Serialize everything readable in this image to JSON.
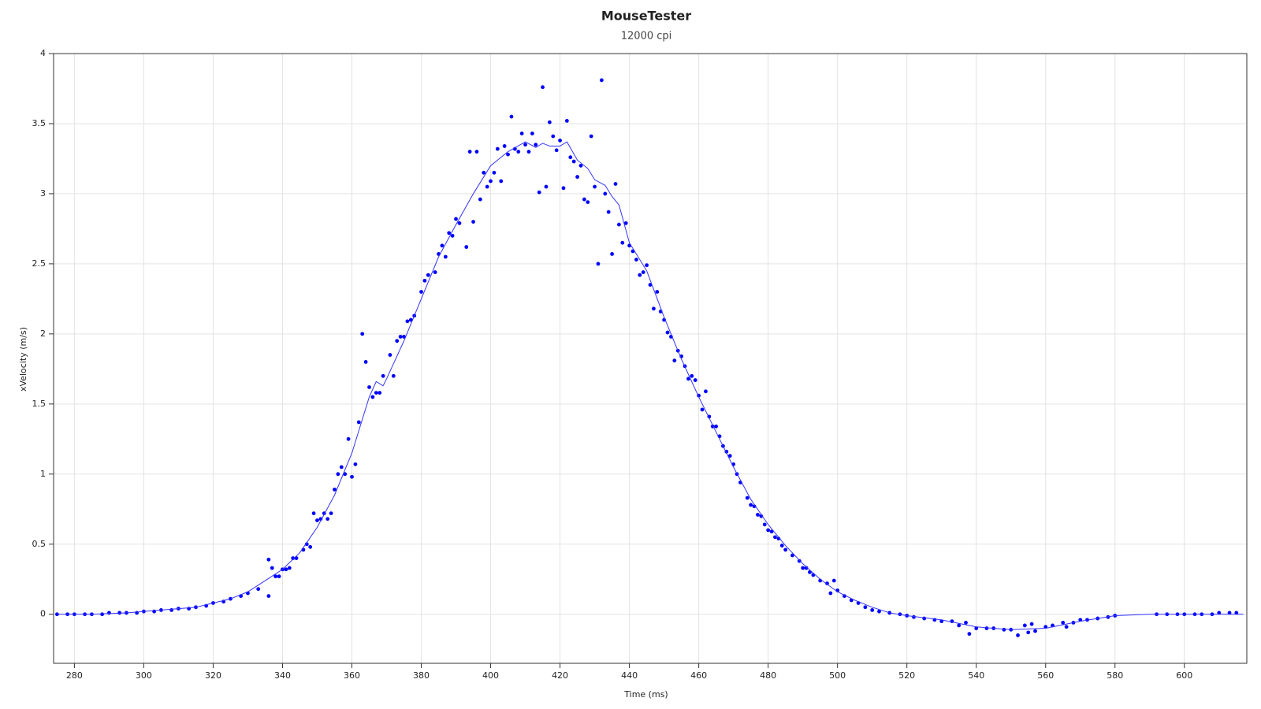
{
  "chart_data": {
    "type": "scatter",
    "title": "MouseTester",
    "subtitle": "12000 cpi",
    "x_label": "Time (ms)",
    "y_label": "xVelocity (m/s)",
    "xlim": [
      274,
      618
    ],
    "ylim": [
      -0.35,
      4
    ],
    "xticks": [
      280,
      300,
      320,
      340,
      360,
      380,
      400,
      420,
      440,
      460,
      480,
      500,
      520,
      540,
      560,
      580,
      600
    ],
    "yticks": [
      0,
      0.5,
      1,
      1.5,
      2,
      2.5,
      3,
      3.5,
      4
    ],
    "grid": true,
    "series": [
      {
        "type": "scatter",
        "color": "#0000ff",
        "x": [
          275,
          278,
          280,
          283,
          285,
          288,
          290,
          293,
          295,
          298,
          300,
          303,
          305,
          308,
          310,
          313,
          315,
          318,
          320,
          323,
          325,
          328,
          330,
          333,
          336,
          336,
          337,
          338,
          339,
          340,
          341,
          342,
          343,
          344,
          346,
          347,
          348,
          349,
          350,
          351,
          352,
          353,
          354,
          355,
          356,
          357,
          358,
          359,
          360,
          361,
          362,
          363,
          364,
          365,
          366,
          367,
          368,
          369,
          371,
          372,
          373,
          374,
          375,
          376,
          377,
          378,
          380,
          381,
          382,
          384,
          385,
          386,
          387,
          388,
          389,
          390,
          391,
          393,
          394,
          395,
          396,
          397,
          398,
          399,
          400,
          401,
          402,
          403,
          404,
          405,
          406,
          407,
          408,
          409,
          410,
          411,
          412,
          413,
          414,
          415,
          416,
          417,
          418,
          419,
          420,
          421,
          422,
          423,
          424,
          425,
          426,
          427,
          428,
          429,
          430,
          431,
          432,
          433,
          434,
          435,
          436,
          437,
          438,
          439,
          440,
          441,
          442,
          443,
          444,
          445,
          446,
          447,
          448,
          449,
          450,
          451,
          452,
          453,
          454,
          455,
          456,
          457,
          458,
          459,
          460,
          461,
          462,
          463,
          464,
          465,
          466,
          467,
          468,
          469,
          470,
          471,
          472,
          474,
          475,
          476,
          477,
          478,
          479,
          480,
          481,
          482,
          483,
          484,
          485,
          487,
          489,
          490,
          491,
          492,
          493,
          495,
          497,
          498,
          499,
          500,
          502,
          504,
          506,
          508,
          510,
          512,
          515,
          518,
          520,
          522,
          525,
          528,
          530,
          533,
          535,
          537,
          538,
          540,
          543,
          545,
          548,
          550,
          552,
          554,
          555,
          556,
          557,
          560,
          562,
          565,
          566,
          568,
          570,
          572,
          575,
          578,
          580,
          592,
          595,
          598,
          600,
          603,
          605,
          608,
          610,
          613,
          615
        ],
        "values": [
          0,
          0,
          0,
          0,
          0,
          0,
          0.01,
          0.01,
          0.01,
          0.01,
          0.02,
          0.02,
          0.03,
          0.03,
          0.04,
          0.04,
          0.05,
          0.06,
          0.08,
          0.09,
          0.11,
          0.13,
          0.15,
          0.18,
          0.39,
          0.13,
          0.33,
          0.27,
          0.27,
          0.32,
          0.32,
          0.33,
          0.4,
          0.4,
          0.46,
          0.5,
          0.48,
          0.72,
          0.67,
          0.68,
          0.72,
          0.68,
          0.72,
          0.89,
          1.0,
          1.05,
          1.0,
          1.25,
          0.98,
          1.07,
          1.37,
          2.0,
          1.8,
          1.62,
          1.55,
          1.58,
          1.58,
          1.7,
          1.85,
          1.7,
          1.95,
          1.98,
          1.98,
          2.09,
          2.1,
          2.13,
          2.3,
          2.38,
          2.42,
          2.44,
          2.57,
          2.63,
          2.55,
          2.72,
          2.7,
          2.82,
          2.79,
          2.62,
          3.3,
          2.8,
          3.3,
          2.96,
          3.15,
          3.05,
          3.09,
          3.15,
          3.32,
          3.09,
          3.34,
          3.28,
          3.55,
          3.32,
          3.3,
          3.43,
          3.35,
          3.3,
          3.43,
          3.35,
          3.01,
          3.76,
          3.05,
          3.51,
          3.41,
          3.31,
          3.38,
          3.04,
          3.52,
          3.26,
          3.23,
          3.12,
          3.2,
          2.96,
          2.94,
          3.41,
          3.05,
          2.5,
          3.81,
          3.0,
          2.87,
          2.57,
          3.07,
          2.78,
          2.65,
          2.79,
          2.63,
          2.59,
          2.53,
          2.42,
          2.44,
          2.49,
          2.35,
          2.18,
          2.3,
          2.16,
          2.1,
          2.01,
          1.98,
          1.81,
          1.88,
          1.84,
          1.77,
          1.68,
          1.7,
          1.67,
          1.56,
          1.46,
          1.59,
          1.41,
          1.34,
          1.34,
          1.27,
          1.2,
          1.16,
          1.13,
          1.07,
          1.0,
          0.94,
          0.83,
          0.78,
          0.77,
          0.71,
          0.7,
          0.64,
          0.6,
          0.59,
          0.55,
          0.54,
          0.49,
          0.46,
          0.42,
          0.38,
          0.33,
          0.33,
          0.3,
          0.28,
          0.24,
          0.22,
          0.15,
          0.24,
          0.17,
          0.13,
          0.1,
          0.08,
          0.05,
          0.03,
          0.02,
          0.01,
          0,
          -0.01,
          -0.02,
          -0.03,
          -0.04,
          -0.05,
          -0.05,
          -0.08,
          -0.06,
          -0.14,
          -0.1,
          -0.1,
          -0.1,
          -0.11,
          -0.11,
          -0.15,
          -0.08,
          -0.13,
          -0.07,
          -0.12,
          -0.09,
          -0.08,
          -0.06,
          -0.09,
          -0.06,
          -0.04,
          -0.04,
          -0.03,
          -0.02,
          -0.01,
          0,
          0,
          0,
          0,
          0,
          0,
          0,
          0.01,
          0.01,
          0.01
        ]
      },
      {
        "type": "line",
        "color": "#3333ff",
        "x": [
          275,
          285,
          295,
          305,
          315,
          320,
          325,
          330,
          335,
          340,
          345,
          350,
          355,
          360,
          365,
          367,
          369,
          370,
          375,
          380,
          385,
          390,
          395,
          400,
          405,
          410,
          413,
          415,
          417,
          420,
          422,
          425,
          428,
          430,
          433,
          435,
          437,
          440,
          445,
          450,
          455,
          460,
          465,
          470,
          475,
          480,
          485,
          490,
          495,
          500,
          505,
          510,
          515,
          520,
          530,
          540,
          550,
          560,
          570,
          580,
          590,
          600,
          617
        ],
        "values": [
          0,
          0,
          0.01,
          0.03,
          0.05,
          0.08,
          0.11,
          0.16,
          0.24,
          0.32,
          0.44,
          0.62,
          0.85,
          1.15,
          1.55,
          1.66,
          1.63,
          1.68,
          1.95,
          2.25,
          2.55,
          2.78,
          3.0,
          3.2,
          3.3,
          3.37,
          3.33,
          3.36,
          3.34,
          3.34,
          3.37,
          3.24,
          3.18,
          3.1,
          3.06,
          2.98,
          2.92,
          2.65,
          2.45,
          2.12,
          1.82,
          1.55,
          1.3,
          1.05,
          0.82,
          0.64,
          0.49,
          0.36,
          0.25,
          0.16,
          0.1,
          0.05,
          0.01,
          -0.01,
          -0.04,
          -0.09,
          -0.11,
          -0.1,
          -0.05,
          -0.01,
          0,
          0,
          0
        ]
      }
    ]
  }
}
